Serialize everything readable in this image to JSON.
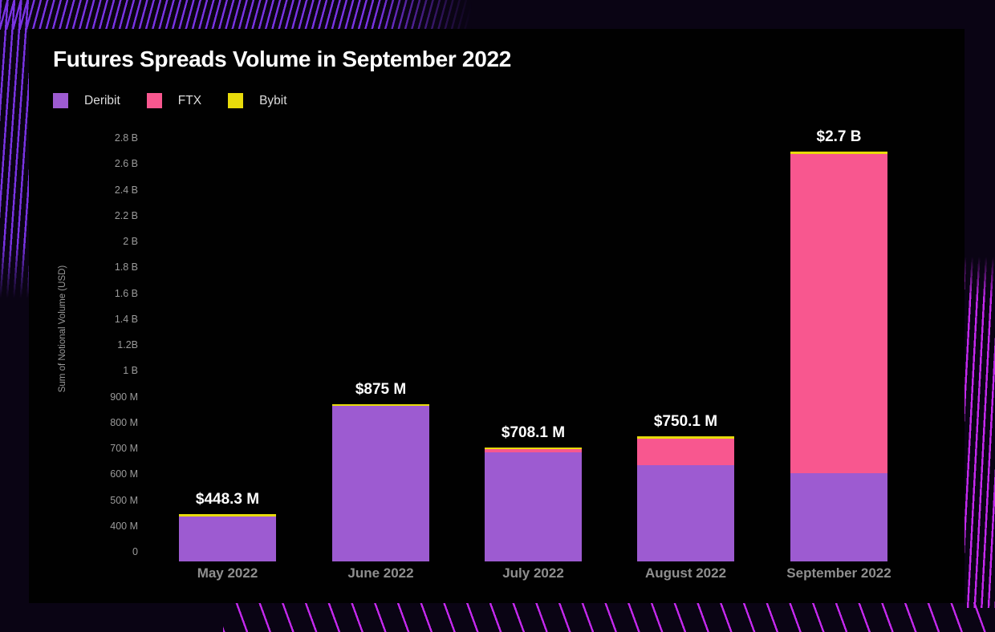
{
  "header": {
    "title": "Futures Spreads Volume in September 2022"
  },
  "legend": {
    "items": [
      {
        "label": "Deribit",
        "color": "#9d5bd1"
      },
      {
        "label": "FTX",
        "color": "#f8578f"
      },
      {
        "label": "Bybit",
        "color": "#e8db0b"
      }
    ]
  },
  "colors": {
    "panel_background": "#010101",
    "page_background": "#0a0414",
    "top_left_pattern": "#7933e3",
    "bottom_right_pattern": "#c429ed",
    "title_text": "#ffffff",
    "axis_text": "#9b9b9b",
    "month_text": "#8f8f8f"
  },
  "chart_data": {
    "type": "bar",
    "stacked": true,
    "title": "Futures Spreads Volume in September 2022",
    "xlabel": "",
    "ylabel": "Sum of Notional Volume (USD)",
    "legend_position": "top-left",
    "grid": false,
    "categories": [
      "May 2022",
      "June 2022",
      "July 2022",
      "August 2022",
      "September 2022"
    ],
    "series": [
      {
        "name": "Deribit",
        "color": "#9d5bd1",
        "values_usd_millions": [
          440,
          867,
          688,
          640,
          608
        ]
      },
      {
        "name": "FTX",
        "color": "#f8578f",
        "values_usd_millions": [
          0,
          0,
          12,
          100,
          2077
        ]
      },
      {
        "name": "Bybit",
        "color": "#e8db0b",
        "values_usd_millions": [
          8.3,
          8,
          8.1,
          10.1,
          15
        ]
      }
    ],
    "totals_labels": [
      "$448.3 M",
      "$875 M",
      "$708.1 M",
      "$750.1 M",
      "$2.7 B"
    ],
    "y_ticks": [
      "2.8 B",
      "2.6 B",
      "2.4 B",
      "2.2 B",
      "2 B",
      "1.8 B",
      "1.6 B",
      "1.4 B",
      "1.2B",
      "1 B",
      "900 M",
      "800 M",
      "700 M",
      "600 M",
      "500 M",
      "400 M",
      "0"
    ],
    "y_axis_note": "piecewise scale: 0 to 400M is one step, 100M steps to 1B, 200M steps to 2.8B"
  }
}
